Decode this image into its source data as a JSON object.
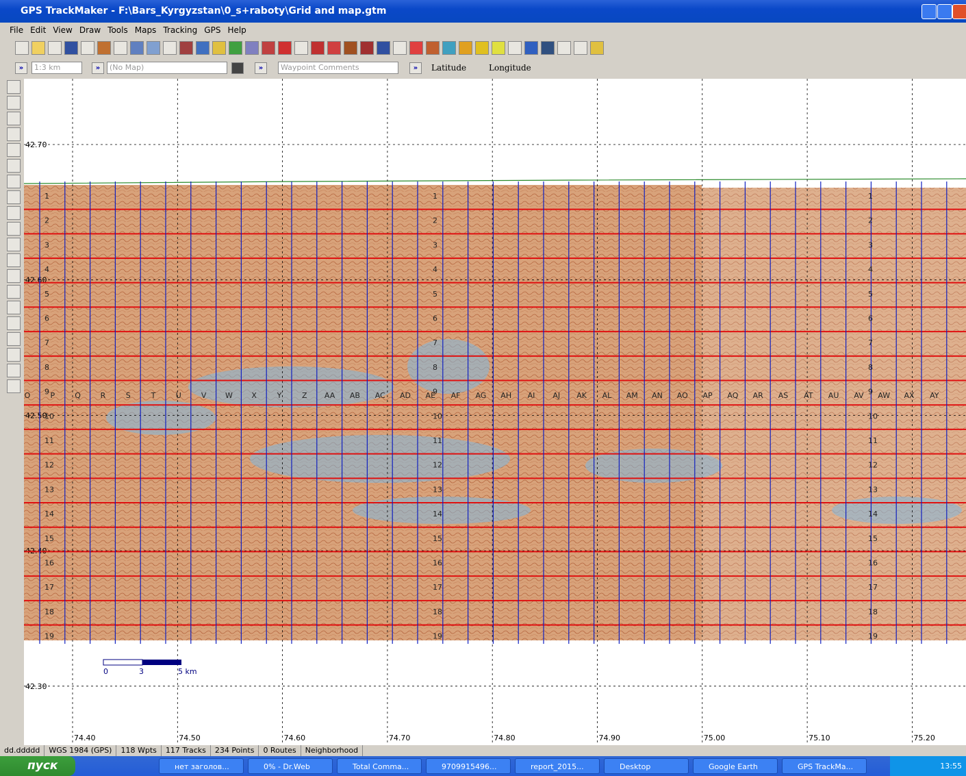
{
  "window": {
    "title": "GPS TrackMaker - F:\\Bars_Kyrgyzstan\\0_s+raboty\\Grid and map.gtm"
  },
  "menu": [
    "File",
    "Edit",
    "View",
    "Draw",
    "Tools",
    "Maps",
    "Tracking",
    "GPS",
    "Help"
  ],
  "input_bar": {
    "scale": "1:3 km",
    "map": "(No Map)",
    "comments": "Waypoint Comments",
    "latitude": "Latitude",
    "longitude": "Longitude"
  },
  "map": {
    "latitudes": [
      "42.70",
      "42.60",
      "42.50",
      "42.40",
      "42.30"
    ],
    "longitudes": [
      "74.40",
      "74.50",
      "74.60",
      "74.70",
      "74.80",
      "74.90",
      "75.00",
      "75.10",
      "75.20"
    ],
    "columns": [
      "O",
      "P",
      "Q",
      "R",
      "S",
      "T",
      "U",
      "V",
      "W",
      "X",
      "Y",
      "Z",
      "AA",
      "AB",
      "AC",
      "AD",
      "AE",
      "AF",
      "AG",
      "AH",
      "AI",
      "AJ",
      "AK",
      "AL",
      "AM",
      "AN",
      "AO",
      "AP",
      "AQ",
      "AR",
      "AS",
      "AT",
      "AU",
      "AV",
      "AW",
      "AX",
      "AY"
    ],
    "rows": [
      "1",
      "2",
      "3",
      "4",
      "5",
      "6",
      "7",
      "8",
      "9",
      "10",
      "11",
      "12",
      "13",
      "14",
      "15",
      "16",
      "17",
      "18",
      "19"
    ],
    "scale_bar": [
      "0",
      "3",
      "5 km"
    ]
  },
  "status_bar": [
    "dd.ddddd",
    "WGS 1984 (GPS)",
    "118 Wpts",
    "117 Tracks",
    "234 Points",
    "0 Routes",
    "Neighborhood"
  ],
  "taskbar": {
    "start": "пуск",
    "items": [
      "нет заголов...",
      "0% - Dr.Web",
      "Total Comma...",
      "9709915496...",
      "report_2015...",
      "Desktop",
      "Google Earth",
      "GPS TrackMa..."
    ],
    "clock": "13:55"
  }
}
